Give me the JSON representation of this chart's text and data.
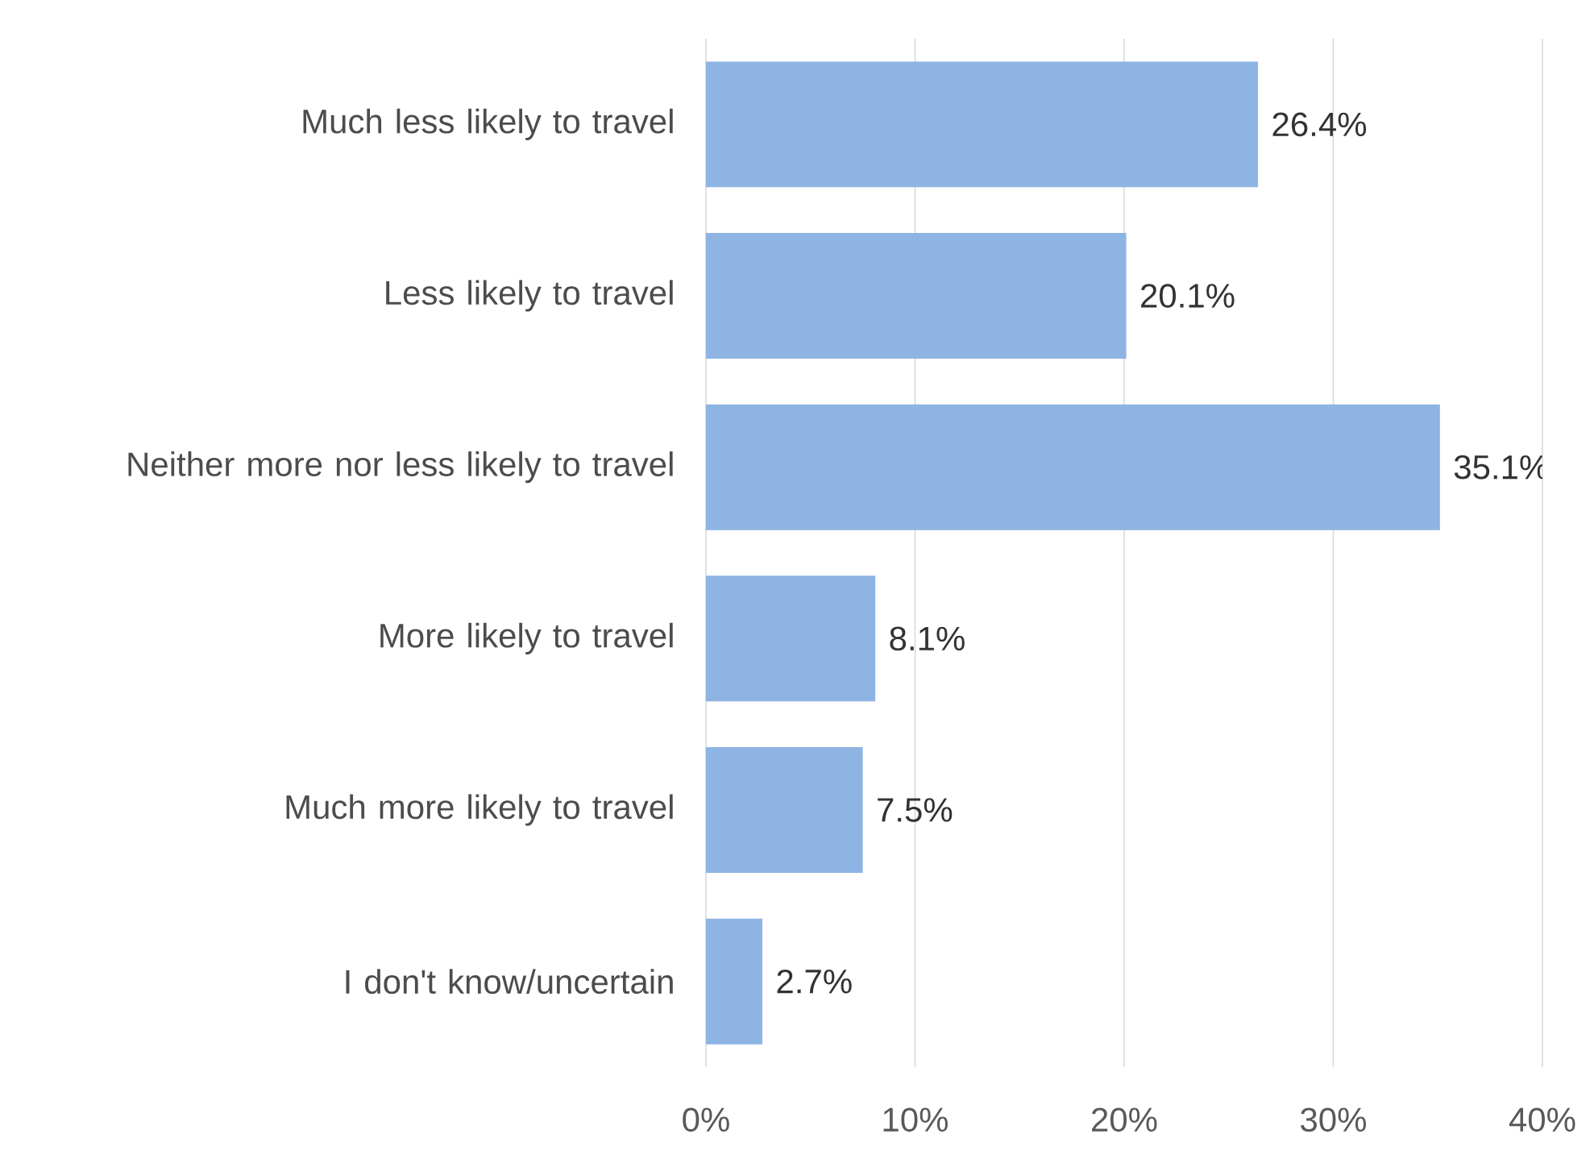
{
  "chart_data": {
    "type": "bar",
    "orientation": "horizontal",
    "categories": [
      "Much less likely to travel",
      "Less likely to travel",
      "Neither more nor less likely to travel",
      "More likely to travel",
      "Much more likely to travel",
      "I don't know/uncertain"
    ],
    "values": [
      26.4,
      20.1,
      35.1,
      8.1,
      7.5,
      2.7
    ],
    "value_labels": [
      "26.4%",
      "20.1%",
      "35.1%",
      "8.1%",
      "7.5%",
      "2.7%"
    ],
    "color": "#8eb4e3",
    "xlim": [
      0,
      40
    ],
    "xticks": [
      {
        "value": 0,
        "label": "0%"
      },
      {
        "value": 10,
        "label": "10%"
      },
      {
        "value": 20,
        "label": "20%"
      },
      {
        "value": 30,
        "label": "30%"
      },
      {
        "value": 40,
        "label": "40%"
      }
    ],
    "grid": "x"
  }
}
